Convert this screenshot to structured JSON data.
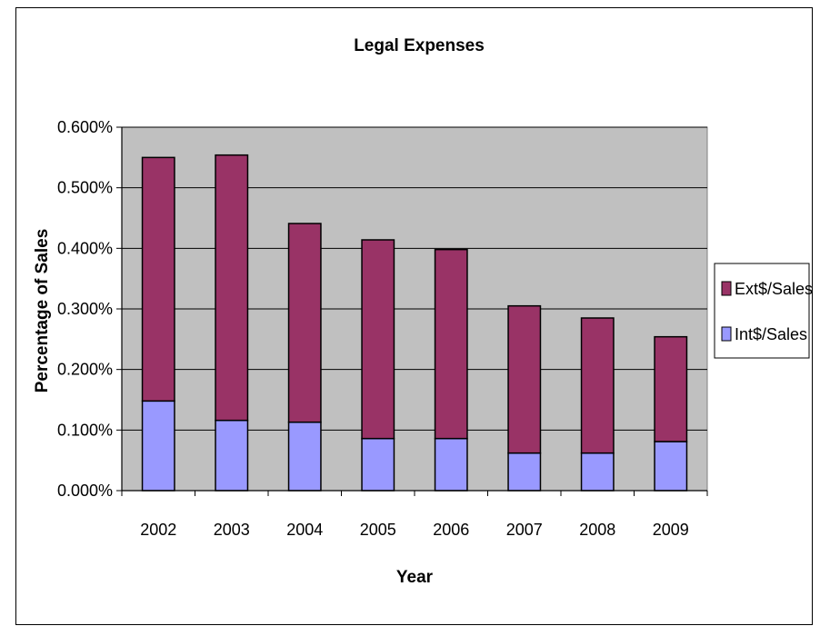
{
  "chart_data": {
    "type": "bar",
    "stacked": true,
    "title": "Legal Expenses",
    "xlabel": "Year",
    "ylabel": "Percentage of Sales",
    "categories": [
      "2002",
      "2003",
      "2004",
      "2005",
      "2006",
      "2007",
      "2008",
      "2009"
    ],
    "series": [
      {
        "name": "Int$/Sales",
        "color": "#9999ff",
        "values": [
          0.148,
          0.116,
          0.113,
          0.086,
          0.086,
          0.062,
          0.062,
          0.081
        ]
      },
      {
        "name": "Ext$/Sales",
        "color": "#993366",
        "values": [
          0.402,
          0.438,
          0.328,
          0.328,
          0.312,
          0.243,
          0.223,
          0.173
        ]
      }
    ],
    "ylim": [
      0,
      0.6
    ],
    "yticks": [
      "0.000%",
      "0.100%",
      "0.200%",
      "0.300%",
      "0.400%",
      "0.500%",
      "0.600%"
    ],
    "plot_background": "#c0c0c0",
    "grid": true,
    "legend_position": "right",
    "legend_order": [
      "Ext$/Sales",
      "Int$/Sales"
    ]
  }
}
